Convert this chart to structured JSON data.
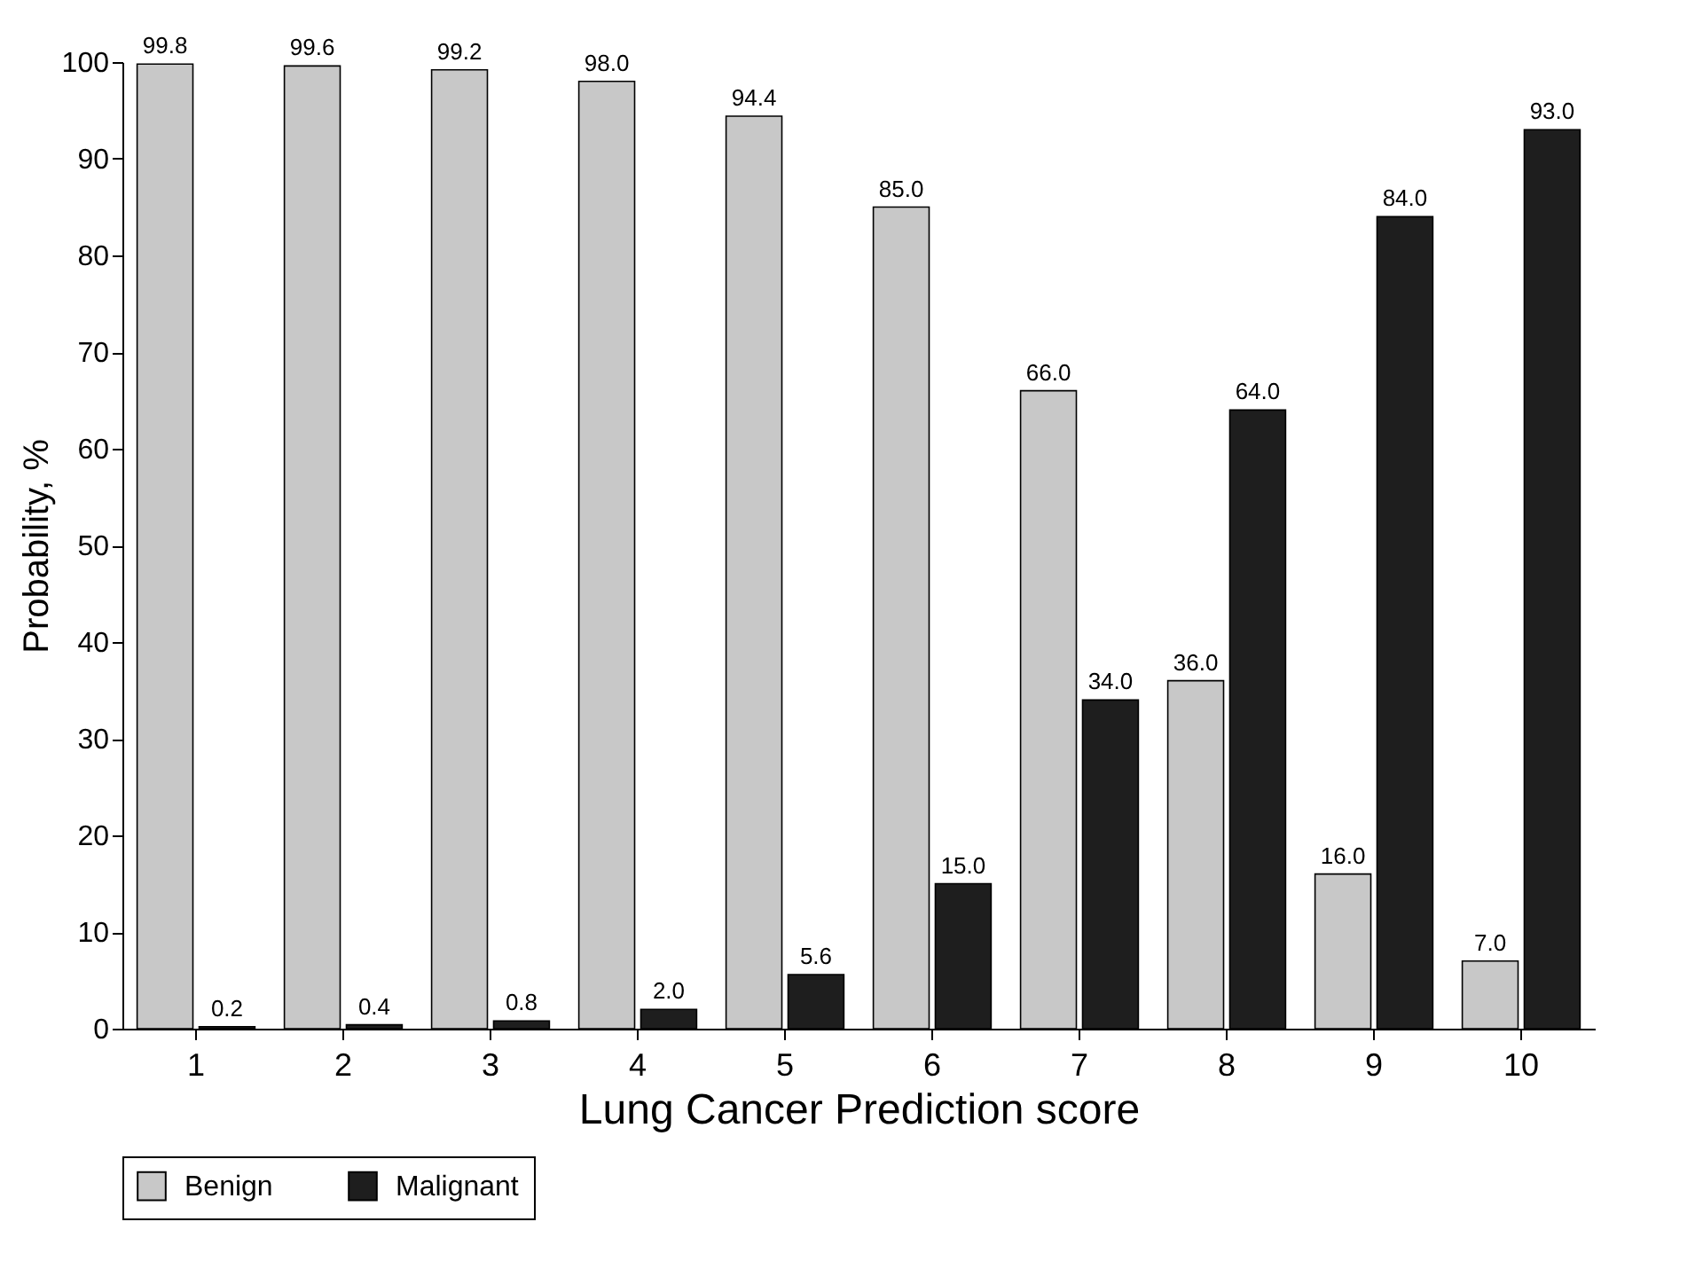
{
  "chart_data": {
    "type": "bar",
    "xlabel": "Lung Cancer Prediction score",
    "ylabel": "Probability, %",
    "categories": [
      "1",
      "2",
      "3",
      "4",
      "5",
      "6",
      "7",
      "8",
      "9",
      "10"
    ],
    "series": [
      {
        "name": "Benign",
        "color": "#c8c8c8",
        "values": [
          99.8,
          99.6,
          99.2,
          98.0,
          94.4,
          85.0,
          66.0,
          36.0,
          16.0,
          7.0
        ],
        "value_labels": [
          "99.8",
          "99.6",
          "99.2",
          "98.0",
          "94.4",
          "85.0",
          "66.0",
          "36.0",
          "16.0",
          "7.0"
        ]
      },
      {
        "name": "Malignant",
        "color": "#1e1e1e",
        "values": [
          0.2,
          0.4,
          0.8,
          2.0,
          5.6,
          15.0,
          34.0,
          64.0,
          84.0,
          93.0
        ],
        "value_labels": [
          "0.2",
          "0.4",
          "0.8",
          "2.0",
          "5.6",
          "15.0",
          "34.0",
          "64.0",
          "84.0",
          "93.0"
        ]
      }
    ],
    "ylim": [
      0,
      100
    ],
    "yticks": [
      0,
      10,
      20,
      30,
      40,
      50,
      60,
      70,
      80,
      90,
      100
    ],
    "grid": false,
    "legend": "bottom"
  }
}
